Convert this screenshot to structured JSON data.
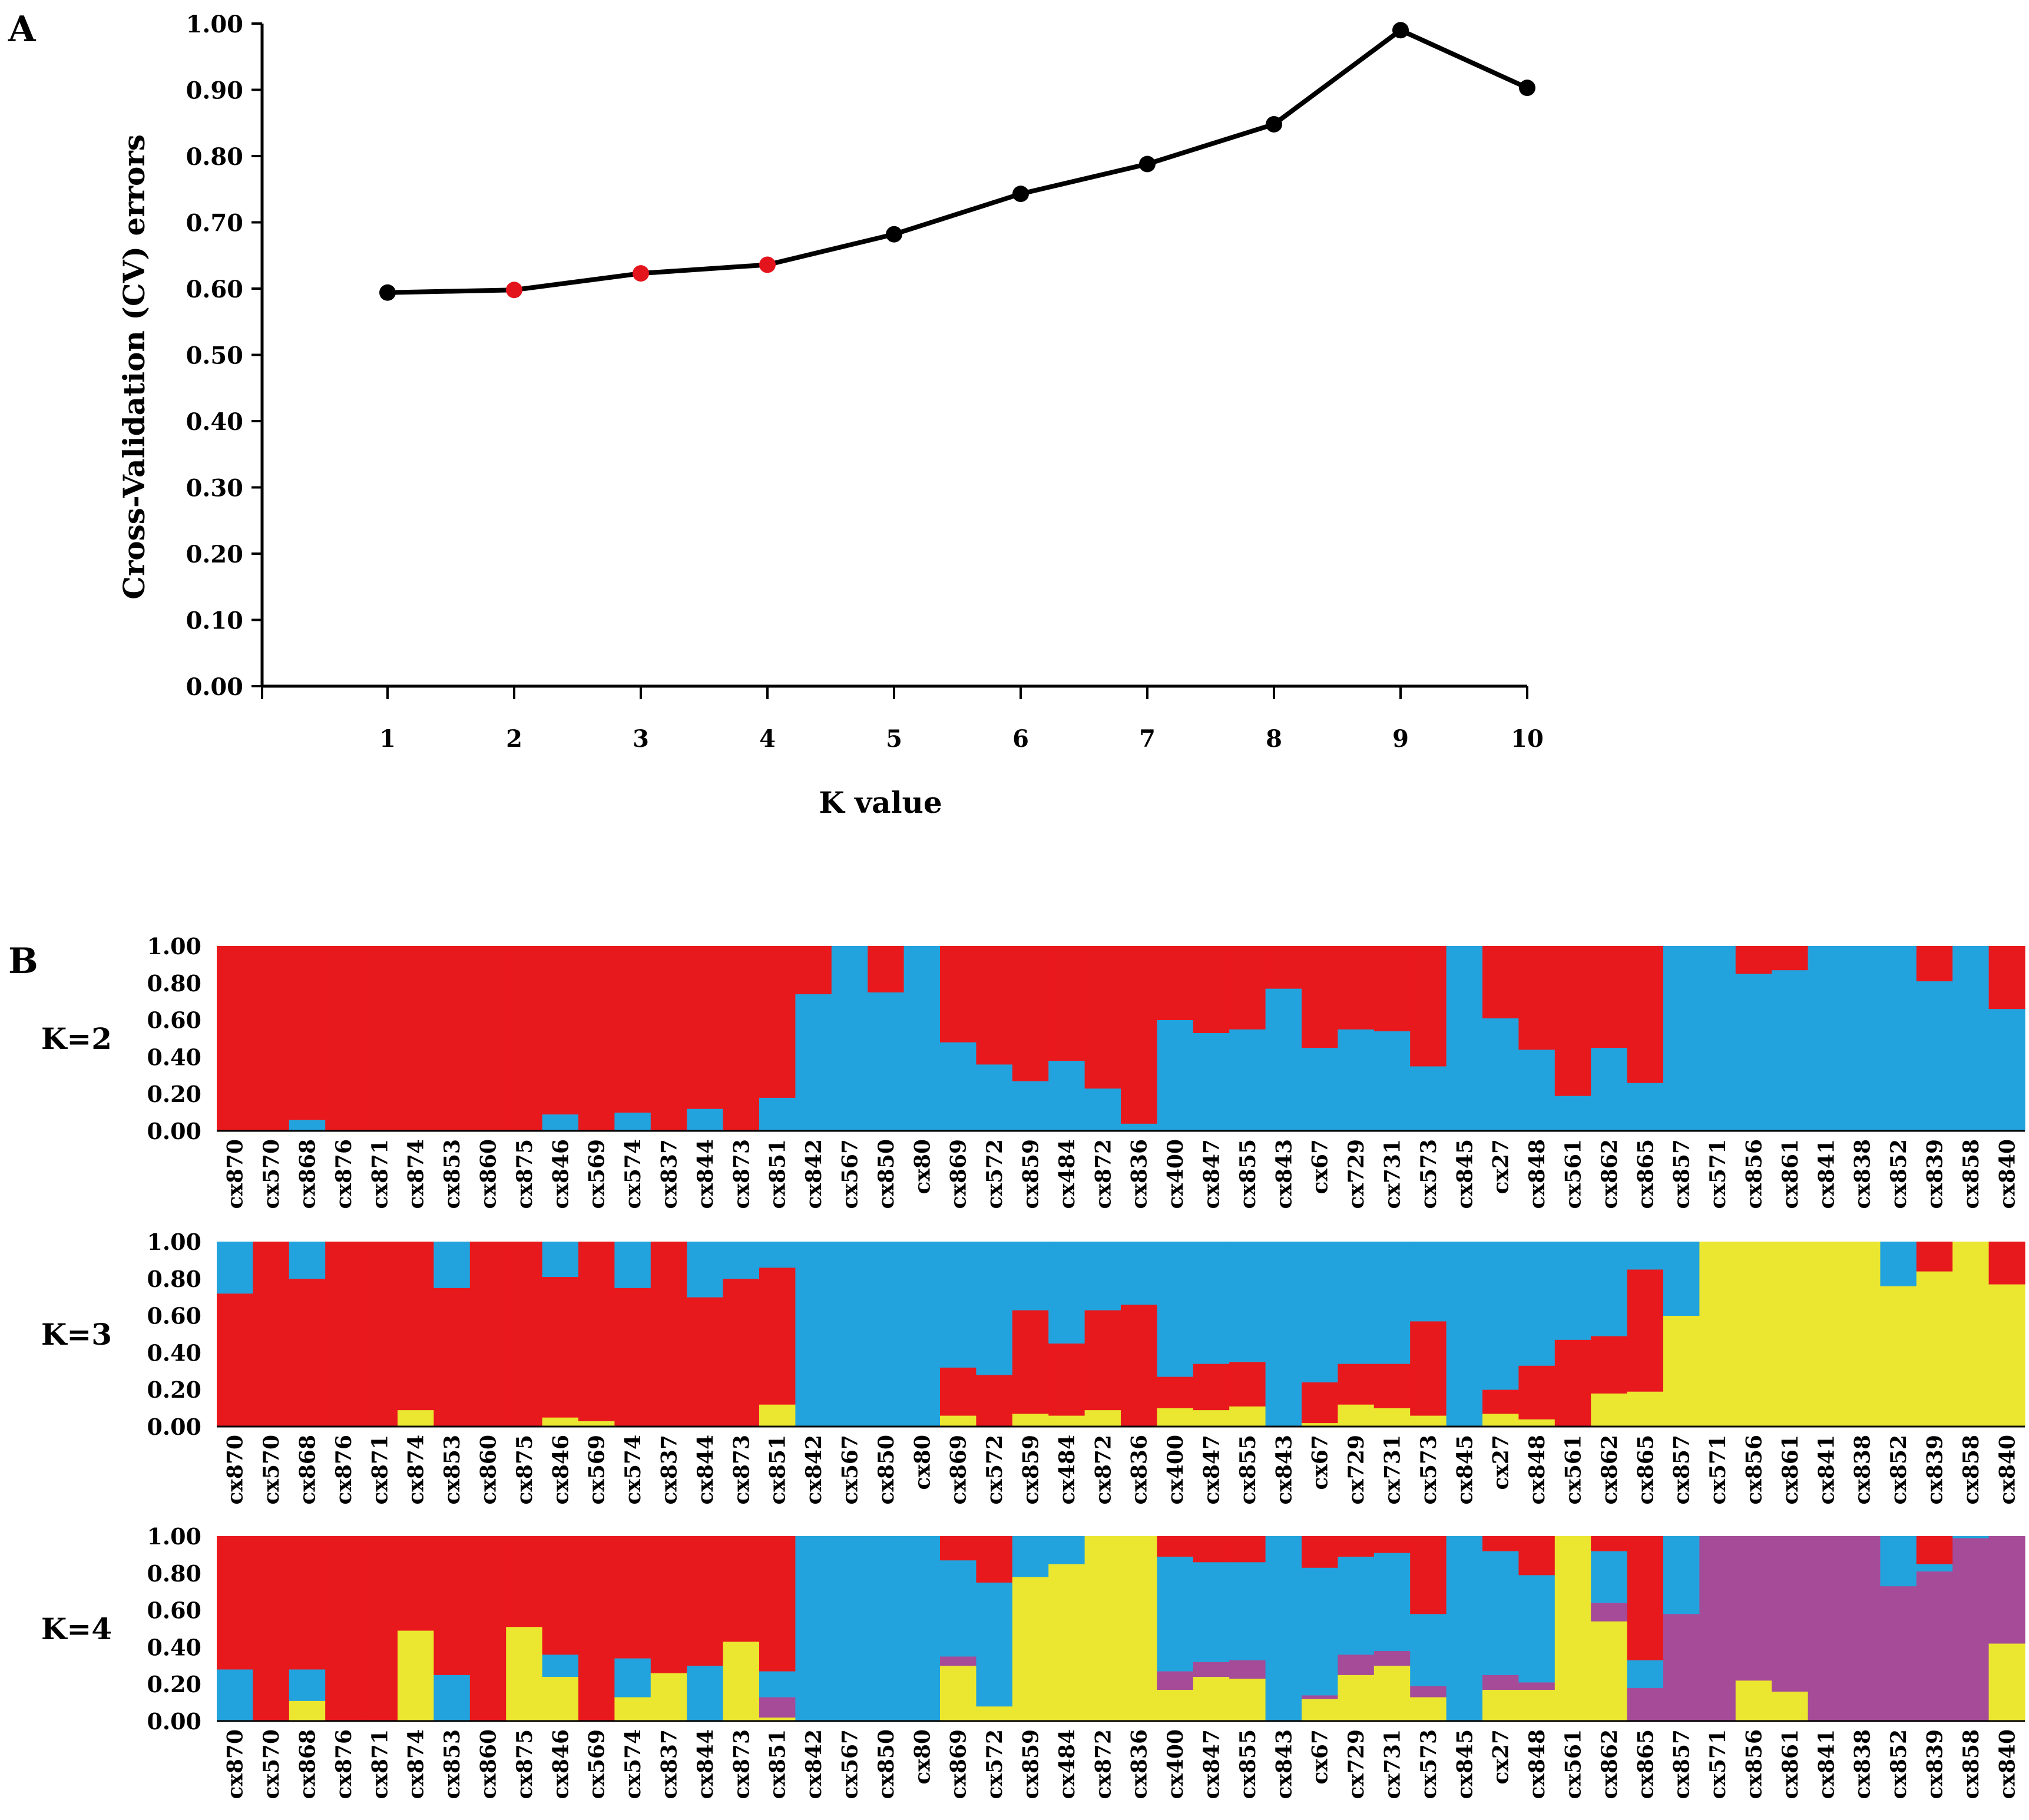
{
  "panel_a": {
    "label": "A",
    "chart_data": {
      "type": "line",
      "title": "",
      "xlabel": "K value",
      "ylabel": "Cross-Validation (CV) errors",
      "x": [
        1,
        2,
        3,
        4,
        5,
        6,
        7,
        8,
        9,
        10
      ],
      "values": [
        0.594,
        0.598,
        0.623,
        0.636,
        0.682,
        0.743,
        0.788,
        0.848,
        0.99,
        0.903
      ],
      "highlighted_x": [
        2,
        3,
        4
      ],
      "ylim": [
        0,
        1
      ],
      "yticks": [
        "0.00",
        "0.10",
        "0.20",
        "0.30",
        "0.40",
        "0.50",
        "0.60",
        "0.70",
        "0.80",
        "0.90",
        "1.00"
      ],
      "xticks": [
        "1",
        "2",
        "3",
        "4",
        "5",
        "6",
        "7",
        "8",
        "9",
        "10"
      ],
      "line_color": "#000000",
      "marker_color": "#000000",
      "highlight_color": "#e3141c"
    }
  },
  "panel_b": {
    "label": "B",
    "chart_data": {
      "type": "bar",
      "stacked": true,
      "ylim": [
        0,
        1
      ],
      "yticks": [
        "0.00",
        "0.20",
        "0.40",
        "0.60",
        "0.80",
        "1.00"
      ],
      "colors": {
        "red": "#e8191d",
        "blue": "#23a3dd",
        "yellow": "#ebe630",
        "purple": "#a54b98"
      },
      "categories": [
        "cx870",
        "cx570",
        "cx868",
        "cx876",
        "cx871",
        "cx874",
        "cx853",
        "cx860",
        "cx875",
        "cx846",
        "cx569",
        "cx574",
        "cx837",
        "cx844",
        "cx873",
        "cx851",
        "cx842",
        "cx567",
        "cx850",
        "cx80",
        "cx869",
        "cx572",
        "cx859",
        "cx484",
        "cx872",
        "cx836",
        "cx400",
        "cx847",
        "cx855",
        "cx843",
        "cx67",
        "cx729",
        "cx731",
        "cx573",
        "cx845",
        "cx27",
        "cx848",
        "cx561",
        "cx862",
        "cx865",
        "cx857",
        "cx571",
        "cx856",
        "cx861",
        "cx841",
        "cx838",
        "cx852",
        "cx839",
        "cx858",
        "cx840"
      ],
      "panels": [
        {
          "label": "K=2",
          "series": [
            {
              "name": "blue",
              "values": [
                0,
                0,
                0.06,
                0,
                0,
                0,
                0,
                0,
                0,
                0.09,
                0,
                0.1,
                0,
                0.12,
                0,
                0.18,
                0.74,
                1,
                0.75,
                1,
                0.48,
                0.36,
                0.27,
                0.38,
                0.23,
                0.04,
                0.6,
                0.53,
                0.55,
                0.77,
                0.45,
                0.55,
                0.54,
                0.35,
                1,
                0.61,
                0.44,
                0.19,
                0.45,
                0.26,
                1,
                1,
                0.85,
                0.87,
                1,
                1,
                1,
                0.81,
                1,
                0.66
              ]
            },
            {
              "name": "red",
              "values": [
                1,
                1,
                0.94,
                1,
                1,
                1,
                1,
                1,
                1,
                0.91,
                1,
                0.9,
                1,
                0.88,
                1,
                0.82,
                0.26,
                0,
                0.25,
                0,
                0.52,
                0.64,
                0.73,
                0.62,
                0.77,
                0.96,
                0.4,
                0.47,
                0.45,
                0.23,
                0.55,
                0.45,
                0.46,
                0.65,
                0,
                0.39,
                0.56,
                0.81,
                0.55,
                0.74,
                0,
                0,
                0.15,
                0.13,
                0,
                0,
                0,
                0.19,
                0,
                0.34
              ]
            }
          ]
        },
        {
          "label": "K=3",
          "series": [
            {
              "name": "yellow",
              "values": [
                0,
                0,
                0,
                0,
                0,
                0.09,
                0,
                0,
                0,
                0.05,
                0.03,
                0,
                0,
                0,
                0,
                0.12,
                0,
                0,
                0,
                0,
                0.06,
                0,
                0.07,
                0.06,
                0.09,
                0,
                0.1,
                0.09,
                0.11,
                0,
                0.02,
                0.12,
                0.1,
                0.06,
                0,
                0.07,
                0.04,
                0,
                0.18,
                0.19,
                0.6,
                1,
                1,
                1,
                1,
                1,
                0.76,
                0.84,
                1,
                0.77
              ]
            },
            {
              "name": "red",
              "values": [
                0.72,
                1,
                0.8,
                1,
                1,
                0.91,
                0.75,
                1,
                1,
                0.76,
                0.97,
                0.75,
                1,
                0.7,
                0.8,
                0.74,
                0,
                0,
                0,
                0,
                0.26,
                0.28,
                0.56,
                0.39,
                0.54,
                0.66,
                0.17,
                0.25,
                0.24,
                0,
                0.22,
                0.22,
                0.24,
                0.51,
                0,
                0.13,
                0.29,
                0.47,
                0.31,
                0.66,
                0,
                0,
                0,
                0,
                0,
                0,
                0,
                0.16,
                0,
                0.23
              ]
            },
            {
              "name": "blue",
              "values": [
                0.28,
                0,
                0.2,
                0,
                0,
                0,
                0.25,
                0,
                0,
                0.19,
                0,
                0.25,
                0,
                0.3,
                0.2,
                0.14,
                1,
                1,
                1,
                1,
                0.68,
                0.72,
                0.37,
                0.55,
                0.37,
                0.34,
                0.73,
                0.66,
                0.65,
                1,
                0.76,
                0.66,
                0.66,
                0.43,
                1,
                0.8,
                0.67,
                0.53,
                0.51,
                0.15,
                0.4,
                0,
                0,
                0,
                0,
                0,
                0.24,
                0,
                0,
                0
              ]
            }
          ]
        },
        {
          "label": "K=4",
          "series": [
            {
              "name": "yellow",
              "values": [
                0,
                0,
                0.11,
                0,
                0,
                0.49,
                0,
                0,
                0.51,
                0.24,
                0,
                0.13,
                0.26,
                0,
                0.43,
                0.02,
                0,
                0,
                0,
                0,
                0.3,
                0.08,
                0.78,
                0.85,
                1,
                1,
                0.17,
                0.24,
                0.23,
                0,
                0.12,
                0.25,
                0.3,
                0.13,
                0,
                0.17,
                0.17,
                1,
                0.54,
                0,
                0,
                0,
                0.22,
                0.16,
                0,
                0,
                0,
                0,
                0,
                0.42
              ]
            },
            {
              "name": "purple",
              "values": [
                0,
                0,
                0,
                0,
                0,
                0,
                0,
                0,
                0,
                0,
                0,
                0,
                0,
                0,
                0,
                0.11,
                0,
                0,
                0,
                0,
                0.05,
                0,
                0,
                0,
                0,
                0,
                0.1,
                0.08,
                0.1,
                0,
                0.02,
                0.11,
                0.08,
                0.06,
                0,
                0.08,
                0.04,
                0,
                0.1,
                0.18,
                0.58,
                1,
                0.78,
                0.84,
                1,
                1,
                0.73,
                0.81,
                0.99,
                0.58
              ]
            },
            {
              "name": "blue",
              "values": [
                0.28,
                0,
                0.17,
                0,
                0,
                0,
                0.25,
                0,
                0,
                0.12,
                0,
                0.21,
                0,
                0.3,
                0,
                0.14,
                1,
                1,
                1,
                1,
                0.52,
                0.67,
                0.22,
                0.15,
                0,
                0,
                0.62,
                0.54,
                0.53,
                1,
                0.69,
                0.53,
                0.53,
                0.39,
                1,
                0.67,
                0.58,
                0,
                0.28,
                0.15,
                0.42,
                0,
                0,
                0,
                0,
                0,
                0.27,
                0.04,
                0.01,
                0
              ]
            },
            {
              "name": "red",
              "values": [
                0.72,
                1,
                0.72,
                1,
                1,
                0.51,
                0.75,
                1,
                0.49,
                0.64,
                1,
                0.66,
                0.74,
                0.7,
                0.57,
                0.73,
                0,
                0,
                0,
                0,
                0.13,
                0.25,
                0,
                0,
                0,
                0,
                0.11,
                0.14,
                0.14,
                0,
                0.17,
                0.11,
                0.09,
                0.42,
                0,
                0.08,
                0.21,
                0,
                0.08,
                0.67,
                0,
                0,
                0,
                0,
                0,
                0,
                0,
                0.15,
                0,
                0
              ]
            }
          ]
        }
      ]
    }
  }
}
